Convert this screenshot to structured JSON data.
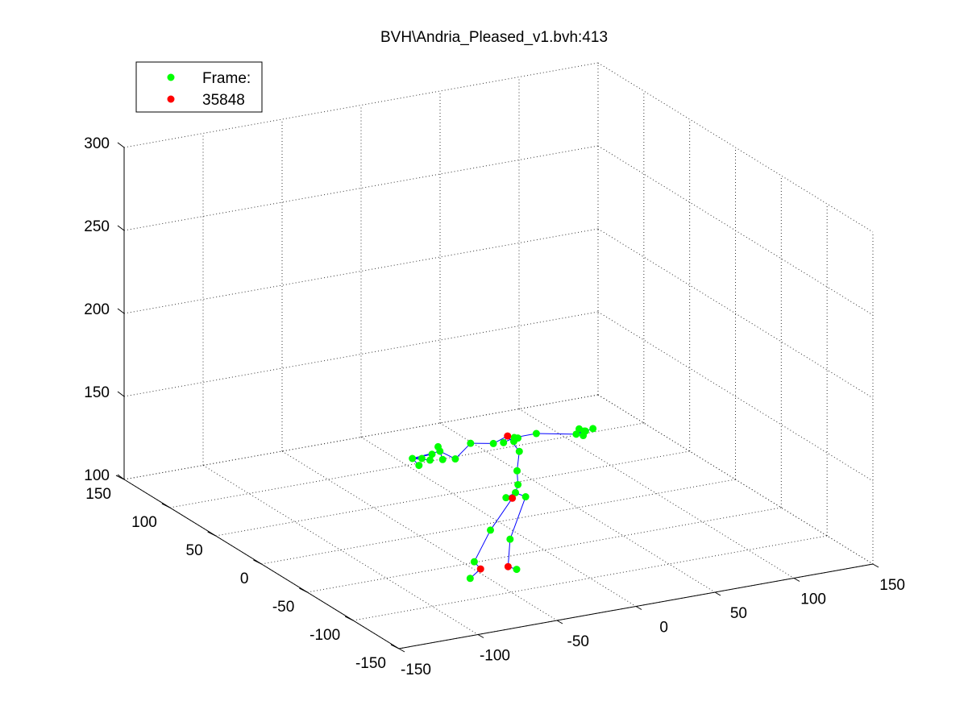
{
  "chart_data": {
    "type": "scatter",
    "title": "BVH\\Andria_Pleased_v1.bvh:413",
    "legend": {
      "placement": "top-left",
      "entries": [
        {
          "label": "Frame:",
          "color": "#00ff00"
        },
        {
          "label": "35848",
          "color": "#ff0000"
        }
      ]
    },
    "axes": {
      "x_ticks": [
        "-150",
        "-100",
        "-50",
        "0",
        "50",
        "100",
        "150"
      ],
      "y_ticks": [
        "-150",
        "-100",
        "-50",
        "0",
        "50",
        "100",
        "150"
      ],
      "z_ticks": [
        "100",
        "150",
        "200",
        "250",
        "300"
      ],
      "xlim": [
        -150,
        150
      ],
      "ylim": [
        -150,
        150
      ],
      "zlim": [
        100,
        300
      ],
      "grid": true,
      "grid_style": "dotted"
    },
    "series": [
      {
        "name": "Frame:",
        "color": "#00ff00",
        "points": [
          [
            -40,
            -5,
            151
          ],
          [
            -45,
            -5,
            150
          ],
          [
            -52,
            -6,
            149
          ],
          [
            -58,
            -6,
            150
          ],
          [
            -55,
            -8,
            146
          ],
          [
            -48,
            -8,
            148
          ],
          [
            -40,
            -8,
            147
          ],
          [
            -32,
            -8,
            146
          ],
          [
            -40,
            -3,
            153
          ],
          [
            -20,
            -4,
            152
          ],
          [
            -5,
            -3,
            149
          ],
          [
            2,
            -2,
            148
          ],
          [
            10,
            0,
            149
          ],
          [
            14,
            3,
            147
          ],
          [
            12,
            4,
            145
          ],
          [
            28,
            7,
            146
          ],
          [
            55,
            10,
            140
          ],
          [
            60,
            10,
            141
          ],
          [
            65,
            9,
            142
          ],
          [
            62,
            12,
            140
          ],
          [
            58,
            12,
            142
          ],
          [
            60,
            11,
            138
          ],
          [
            12,
            -2,
            141
          ],
          [
            10,
            -3,
            130
          ],
          [
            10,
            -4,
            122
          ],
          [
            9,
            -3,
            117
          ],
          [
            3,
            -3,
            115
          ],
          [
            16,
            -2,
            113
          ],
          [
            -8,
            -5,
            98
          ],
          [
            -20,
            -8,
            82
          ],
          [
            -22,
            -7,
            72
          ],
          [
            5,
            -4,
            90
          ],
          [
            8,
            -6,
            72
          ]
        ]
      },
      {
        "name": "35848",
        "color": "#ff0000",
        "points": [
          [
            4,
            -3,
            152
          ],
          [
            7,
            -3,
            114
          ],
          [
            -16,
            -8,
            77
          ],
          [
            2,
            -7,
            75
          ]
        ]
      }
    ],
    "bones": [
      [
        0,
        3
      ],
      [
        0,
        6
      ],
      [
        0,
        7
      ],
      [
        1,
        3
      ],
      [
        2,
        3
      ],
      [
        4,
        3
      ],
      [
        5,
        3
      ],
      [
        7,
        9
      ],
      [
        9,
        10
      ],
      [
        10,
        33
      ],
      [
        33,
        11
      ],
      [
        11,
        12
      ],
      [
        12,
        13
      ],
      [
        12,
        14
      ],
      [
        12,
        15
      ],
      [
        15,
        16
      ],
      [
        16,
        17
      ],
      [
        16,
        18
      ],
      [
        16,
        19
      ],
      [
        16,
        20
      ],
      [
        16,
        21
      ],
      [
        33,
        22
      ],
      [
        22,
        23
      ],
      [
        23,
        24
      ],
      [
        24,
        25
      ],
      [
        25,
        26
      ],
      [
        25,
        27
      ],
      [
        26,
        34
      ],
      [
        34,
        28
      ],
      [
        28,
        29
      ],
      [
        29,
        35
      ],
      [
        35,
        30
      ],
      [
        27,
        31
      ],
      [
        31,
        36
      ],
      [
        36,
        32
      ]
    ]
  }
}
